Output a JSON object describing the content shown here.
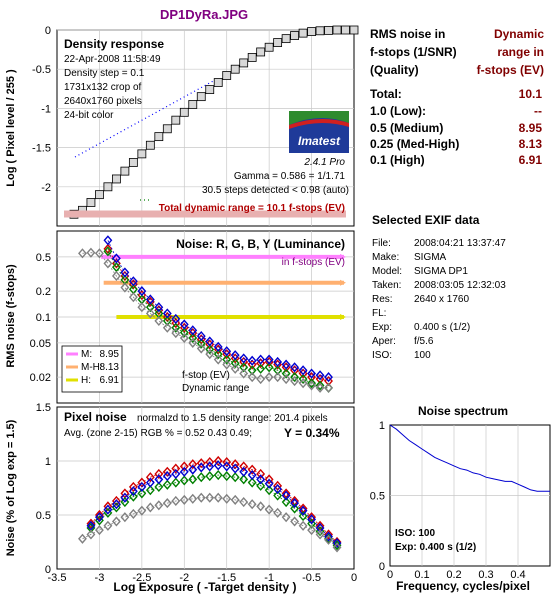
{
  "figure": {
    "file_title": "DP1DyRa.JPG",
    "xlabel": "Log Exposure  ( -Target density )"
  },
  "density": {
    "panel_title": "Density response",
    "info": [
      "22-Apr-2008 11:58:49",
      "Density step = 0.1",
      "1731x132 crop of",
      "2640x1760 pixels",
      "24-bit color"
    ],
    "logo": "Imatest",
    "version": "2.4.1  Pro",
    "gamma": "Gamma = 0.586 = 1/1.71",
    "steps": "30.5 steps detected < 0.98 (auto)",
    "total_dr": "Total dynamic range = 10.1 f-stops (EV)",
    "ylabel": "Log ( Pixel level / 255 )"
  },
  "noise": {
    "panel_title": "Noise: R, G, B, Y (Luminance)",
    "subtitle": "in f-stops (EV)",
    "ylabel": "RMS noise (f-stops)",
    "legend": [
      {
        "label": "M:",
        "value": "8.95",
        "color": "#ff80ff"
      },
      {
        "label": "M-H:",
        "value": "8.13",
        "color": "#ffb070"
      },
      {
        "label": "H:",
        "value": "6.91",
        "color": "#e0e000"
      }
    ],
    "legend_note1": "f-stop (EV)",
    "legend_note2": "Dynamic range"
  },
  "pixel": {
    "panel_title": "Pixel noise",
    "norm": "normalzd to 1.5 density range: 201.4 pixels",
    "avg": "Avg. (zone 2-15) RGB % = 0.52  0.43  0.49;",
    "y_value": "Y = 0.34%",
    "ylabel": "Noise (% of Log exp = 1.5)"
  },
  "rms_table": {
    "col1_lines": [
      "RMS noise in",
      "f-stops (1/SNR)",
      "(Quality)"
    ],
    "col2_lines": [
      "Dynamic",
      "range in",
      "f-stops (EV)"
    ],
    "rows": [
      {
        "label": "Total:",
        "value": "10.1"
      },
      {
        "label": "1.0    (Low):",
        "value": "--"
      },
      {
        "label": "0.5    (Medium)",
        "value": "8.95"
      },
      {
        "label": "0.25  (Med-High)",
        "value": "8.13"
      },
      {
        "label": "0.1    (High)",
        "value": "6.91"
      }
    ]
  },
  "exif": {
    "title": "Selected EXIF data",
    "rows": [
      {
        "k": "File:",
        "v": "2008:04:21 13:37:47"
      },
      {
        "k": "Make:",
        "v": "SIGMA"
      },
      {
        "k": "Model:",
        "v": "SIGMA DP1"
      },
      {
        "k": "Taken:",
        "v": "2008:03:05 12:32:03"
      },
      {
        "k": "Res:",
        "v": "2640 x 1760"
      },
      {
        "k": "FL:",
        "v": ""
      },
      {
        "k": "Exp:",
        "v": "0.400 s  (1/2)"
      },
      {
        "k": "Aper:",
        "v": "f/5.6"
      },
      {
        "k": "ISO:",
        "v": "100"
      }
    ]
  },
  "spectrum": {
    "title": "Noise spectrum",
    "xlabel": "Frequency, cycles/pixel",
    "iso": "ISO:  100",
    "exp": "Exp:  0.400 s  (1/2)"
  },
  "chart_data": [
    {
      "type": "scatter",
      "name": "density_response",
      "xlim": [
        -3.5,
        0
      ],
      "ylim": [
        -2.5,
        0
      ],
      "x_ticks": [
        -3.5,
        -3,
        -2.5,
        -2,
        -1.5,
        -1,
        -0.5,
        0
      ],
      "y_ticks": [
        0,
        -0.5,
        -1,
        -1.5,
        -2
      ],
      "y_tick_labels": [
        "0",
        "-0.5",
        "-1",
        "-1.5",
        "-2"
      ],
      "grid": true,
      "series": [
        {
          "x": [
            -3.3,
            -3.2,
            -3.1,
            -3.0,
            -2.9,
            -2.8,
            -2.7,
            -2.6,
            -2.5,
            -2.4,
            -2.3,
            -2.2,
            -2.1,
            -2.0,
            -1.9,
            -1.8,
            -1.7,
            -1.6,
            -1.5,
            -1.4,
            -1.3,
            -1.2,
            -1.1,
            -1.0,
            -0.9,
            -0.8,
            -0.7,
            -0.6,
            -0.5,
            -0.4,
            -0.3,
            -0.2,
            -0.1,
            0.0
          ],
          "y": [
            -2.35,
            -2.3,
            -2.2,
            -2.1,
            -2.0,
            -1.9,
            -1.8,
            -1.69,
            -1.58,
            -1.47,
            -1.36,
            -1.26,
            -1.15,
            -1.05,
            -0.95,
            -0.85,
            -0.76,
            -0.67,
            -0.58,
            -0.5,
            -0.42,
            -0.35,
            -0.28,
            -0.22,
            -0.16,
            -0.11,
            -0.07,
            -0.04,
            -0.02,
            -0.01,
            -0.005,
            0,
            0,
            0
          ]
        }
      ]
    },
    {
      "type": "line",
      "name": "rms_noise_fstops",
      "xlim": [
        -3.5,
        0
      ],
      "y_scale": "log",
      "ylim": [
        0.01,
        1
      ],
      "y_ticks": [
        0.5,
        0.2,
        0.1,
        0.05,
        0.02
      ],
      "y_tick_labels": [
        "0.5",
        "0.2",
        "0.1",
        "0.05",
        "0.02"
      ],
      "x_ticks": [
        -3.5,
        -3,
        -2.5,
        -2,
        -1.5,
        -1,
        -0.5,
        0
      ],
      "grid": true,
      "threshold_lines": [
        {
          "y": 0.5,
          "x_start": -2.98,
          "color": "#ff80ff"
        },
        {
          "y": 0.25,
          "x_start": -2.95,
          "color": "#ffb070"
        },
        {
          "y": 0.1,
          "x_start": -2.8,
          "color": "#e0e000"
        }
      ],
      "series": [
        {
          "color": "#d00000",
          "x": [
            -2.9,
            -2.8,
            -2.7,
            -2.6,
            -2.5,
            -2.4,
            -2.3,
            -2.2,
            -2.1,
            -2.0,
            -1.9,
            -1.8,
            -1.7,
            -1.6,
            -1.5,
            -1.4,
            -1.3,
            -1.2,
            -1.1,
            -1.0,
            -0.9,
            -0.8,
            -0.7,
            -0.6,
            -0.5,
            -0.4,
            -0.3
          ],
          "y": [
            0.62,
            0.42,
            0.3,
            0.24,
            0.18,
            0.15,
            0.12,
            0.1,
            0.085,
            0.075,
            0.065,
            0.055,
            0.048,
            0.042,
            0.037,
            0.033,
            0.03,
            0.028,
            0.029,
            0.03,
            0.028,
            0.026,
            0.024,
            0.022,
            0.02,
            0.019,
            0.018
          ]
        },
        {
          "color": "#008000",
          "x": [
            -2.9,
            -2.8,
            -2.7,
            -2.6,
            -2.5,
            -2.4,
            -2.3,
            -2.2,
            -2.1,
            -2.0,
            -1.9,
            -1.8,
            -1.7,
            -1.6,
            -1.5,
            -1.4,
            -1.3,
            -1.2,
            -1.1,
            -1.0,
            -0.9,
            -0.8,
            -0.7,
            -0.6,
            -0.5,
            -0.4,
            -0.3
          ],
          "y": [
            0.58,
            0.38,
            0.27,
            0.21,
            0.16,
            0.13,
            0.11,
            0.09,
            0.075,
            0.066,
            0.057,
            0.049,
            0.042,
            0.037,
            0.032,
            0.029,
            0.026,
            0.024,
            0.025,
            0.026,
            0.024,
            0.022,
            0.02,
            0.019,
            0.017,
            0.016,
            0.015
          ]
        },
        {
          "color": "#0000d0",
          "x": [
            -2.9,
            -2.8,
            -2.7,
            -2.6,
            -2.5,
            -2.4,
            -2.3,
            -2.2,
            -2.1,
            -2.0,
            -1.9,
            -1.8,
            -1.7,
            -1.6,
            -1.5,
            -1.4,
            -1.3,
            -1.2,
            -1.1,
            -1.0,
            -0.9,
            -0.8,
            -0.7,
            -0.6,
            -0.5,
            -0.4,
            -0.3
          ],
          "y": [
            0.78,
            0.48,
            0.33,
            0.26,
            0.2,
            0.16,
            0.13,
            0.11,
            0.095,
            0.082,
            0.07,
            0.06,
            0.052,
            0.045,
            0.04,
            0.036,
            0.033,
            0.031,
            0.032,
            0.032,
            0.03,
            0.028,
            0.026,
            0.024,
            0.022,
            0.021,
            0.02
          ]
        },
        {
          "color": "#808080",
          "x": [
            -3.2,
            -3.1,
            -3.0,
            -2.9,
            -2.8,
            -2.7,
            -2.6,
            -2.5,
            -2.4,
            -2.3,
            -2.2,
            -2.1,
            -2.0,
            -1.9,
            -1.8,
            -1.7,
            -1.6,
            -1.5,
            -1.4,
            -1.3,
            -1.2,
            -1.1,
            -1.0,
            -0.9,
            -0.8,
            -0.7,
            -0.6,
            -0.5,
            -0.4,
            -0.3
          ],
          "y": [
            0.55,
            0.56,
            0.55,
            0.42,
            0.3,
            0.22,
            0.17,
            0.13,
            0.11,
            0.09,
            0.075,
            0.065,
            0.057,
            0.05,
            0.043,
            0.037,
            0.032,
            0.028,
            0.025,
            0.022,
            0.02,
            0.019,
            0.02,
            0.02,
            0.019,
            0.018,
            0.017,
            0.016,
            0.015,
            0.015
          ]
        }
      ]
    },
    {
      "type": "line",
      "name": "pixel_noise",
      "xlim": [
        -3.5,
        0
      ],
      "ylim": [
        0,
        1.5
      ],
      "x_ticks": [
        -3.5,
        -3,
        -2.5,
        -2,
        -1.5,
        -1,
        -0.5,
        0
      ],
      "x_tick_labels": [
        "-3.5",
        "-3",
        "-2.5",
        "-2",
        "-1.5",
        "-1",
        "-0.5",
        "0"
      ],
      "y_ticks": [
        0,
        0.5,
        1,
        1.5
      ],
      "y_tick_labels": [
        "0",
        "0.5",
        "1",
        "1.5"
      ],
      "grid": true,
      "series": [
        {
          "color": "#d00000",
          "x": [
            -3.1,
            -3.0,
            -2.9,
            -2.8,
            -2.7,
            -2.6,
            -2.5,
            -2.4,
            -2.3,
            -2.2,
            -2.1,
            -2.0,
            -1.9,
            -1.8,
            -1.7,
            -1.6,
            -1.5,
            -1.4,
            -1.3,
            -1.2,
            -1.1,
            -1.0,
            -0.9,
            -0.8,
            -0.7,
            -0.6,
            -0.5,
            -0.4,
            -0.3,
            -0.2
          ],
          "y": [
            0.42,
            0.5,
            0.58,
            0.63,
            0.7,
            0.76,
            0.8,
            0.85,
            0.88,
            0.9,
            0.93,
            0.95,
            0.97,
            0.98,
            0.99,
            1.0,
            0.99,
            0.97,
            0.95,
            0.92,
            0.88,
            0.83,
            0.77,
            0.7,
            0.63,
            0.56,
            0.48,
            0.4,
            0.32,
            0.25
          ]
        },
        {
          "color": "#008000",
          "x": [
            -3.1,
            -3.0,
            -2.9,
            -2.8,
            -2.7,
            -2.6,
            -2.5,
            -2.4,
            -2.3,
            -2.2,
            -2.1,
            -2.0,
            -1.9,
            -1.8,
            -1.7,
            -1.6,
            -1.5,
            -1.4,
            -1.3,
            -1.2,
            -1.1,
            -1.0,
            -0.9,
            -0.8,
            -0.7,
            -0.6,
            -0.5,
            -0.4,
            -0.3,
            -0.2
          ],
          "y": [
            0.38,
            0.45,
            0.52,
            0.57,
            0.62,
            0.67,
            0.7,
            0.73,
            0.76,
            0.78,
            0.8,
            0.82,
            0.83,
            0.85,
            0.86,
            0.87,
            0.86,
            0.85,
            0.83,
            0.8,
            0.77,
            0.73,
            0.68,
            0.62,
            0.56,
            0.49,
            0.42,
            0.35,
            0.28,
            0.22
          ]
        },
        {
          "color": "#0000d0",
          "x": [
            -3.1,
            -3.0,
            -2.9,
            -2.8,
            -2.7,
            -2.6,
            -2.5,
            -2.4,
            -2.3,
            -2.2,
            -2.1,
            -2.0,
            -1.9,
            -1.8,
            -1.7,
            -1.6,
            -1.5,
            -1.4,
            -1.3,
            -1.2,
            -1.1,
            -1.0,
            -0.9,
            -0.8,
            -0.7,
            -0.6,
            -0.5,
            -0.4,
            -0.3,
            -0.2
          ],
          "y": [
            0.4,
            0.48,
            0.55,
            0.6,
            0.66,
            0.72,
            0.76,
            0.8,
            0.83,
            0.86,
            0.88,
            0.9,
            0.92,
            0.94,
            0.95,
            0.96,
            0.95,
            0.93,
            0.9,
            0.87,
            0.83,
            0.79,
            0.74,
            0.68,
            0.61,
            0.54,
            0.46,
            0.38,
            0.3,
            0.24
          ]
        },
        {
          "color": "#808080",
          "x": [
            -3.2,
            -3.1,
            -3.0,
            -2.9,
            -2.8,
            -2.7,
            -2.6,
            -2.5,
            -2.4,
            -2.3,
            -2.2,
            -2.1,
            -2.0,
            -1.9,
            -1.8,
            -1.7,
            -1.6,
            -1.5,
            -1.4,
            -1.3,
            -1.2,
            -1.1,
            -1.0,
            -0.9,
            -0.8,
            -0.7,
            -0.6,
            -0.5,
            -0.4,
            -0.3,
            -0.2
          ],
          "y": [
            0.28,
            0.32,
            0.36,
            0.4,
            0.44,
            0.48,
            0.51,
            0.54,
            0.57,
            0.59,
            0.61,
            0.63,
            0.64,
            0.65,
            0.66,
            0.66,
            0.66,
            0.65,
            0.64,
            0.62,
            0.6,
            0.58,
            0.55,
            0.52,
            0.48,
            0.44,
            0.4,
            0.36,
            0.32,
            0.27,
            0.2
          ]
        }
      ]
    },
    {
      "type": "line",
      "name": "noise_spectrum",
      "xlim": [
        0,
        0.5
      ],
      "ylim": [
        0,
        1
      ],
      "x_ticks": [
        0,
        0.1,
        0.2,
        0.3,
        0.4
      ],
      "x_tick_labels": [
        "0",
        "0.1",
        "0.2",
        "0.3",
        "0.4"
      ],
      "y_ticks": [
        0,
        0.5,
        1
      ],
      "y_tick_labels": [
        "0",
        "0.5",
        "1"
      ],
      "grid": true,
      "series": [
        {
          "color": "#0000d0",
          "x": [
            0,
            0.02,
            0.04,
            0.06,
            0.08,
            0.1,
            0.12,
            0.14,
            0.16,
            0.18,
            0.2,
            0.22,
            0.24,
            0.26,
            0.28,
            0.3,
            0.32,
            0.34,
            0.36,
            0.38,
            0.4,
            0.42,
            0.44,
            0.46,
            0.48,
            0.5
          ],
          "y": [
            1.0,
            0.97,
            0.93,
            0.89,
            0.86,
            0.83,
            0.8,
            0.77,
            0.75,
            0.73,
            0.71,
            0.69,
            0.68,
            0.66,
            0.65,
            0.63,
            0.62,
            0.61,
            0.6,
            0.6,
            0.58,
            0.56,
            0.54,
            0.53,
            0.53,
            0.53
          ]
        }
      ]
    }
  ]
}
